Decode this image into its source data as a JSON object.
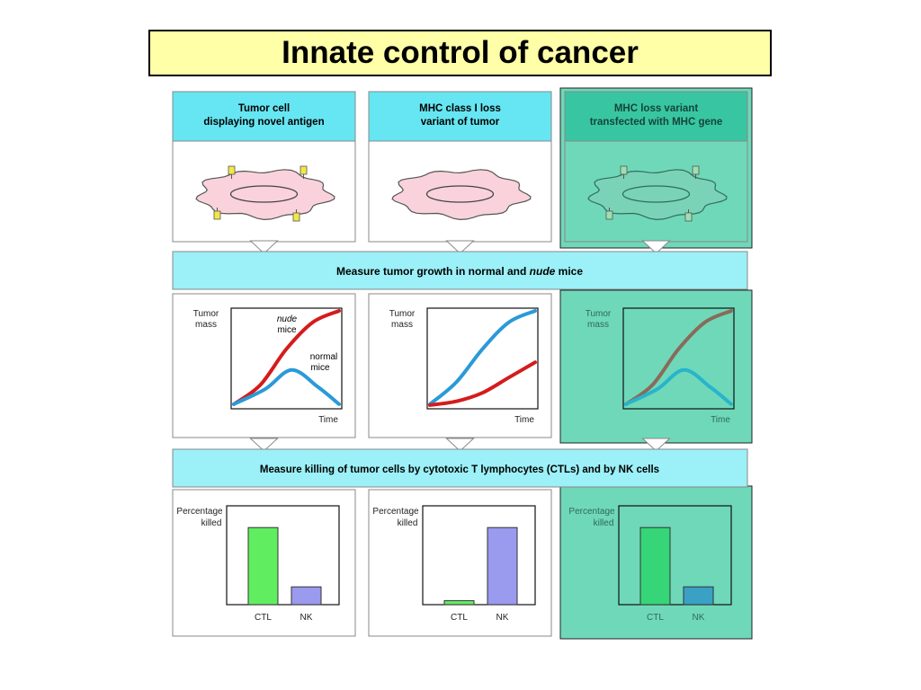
{
  "title": "Innate control of cancer",
  "colors": {
    "title_bg": "#ffffa8",
    "header_cyan": "#66e6f2",
    "band_cyan": "#9cf0f8",
    "cell_pink": "#fad2dc",
    "teal_panel": "#6fd8b8",
    "teal_header": "#38c6a2",
    "curve_red": "#d41c1c",
    "curve_blue": "#2a9ad8",
    "curve_brown": "#8a6a5c",
    "curve_teal_blue": "#28b4cc",
    "bar_green": "#60ee60",
    "bar_purple": "#9a9aee",
    "bar_teal_green": "#36d678",
    "bar_teal_blue": "#3aa0c4"
  },
  "columns": [
    {
      "header": [
        "Tumor cell",
        "displaying novel antigen"
      ],
      "style": "cyan",
      "antigens": true
    },
    {
      "header": [
        "MHC class I loss",
        "variant of tumor"
      ],
      "style": "cyan",
      "antigens": false
    },
    {
      "header": [
        "MHC loss variant",
        "transfected with MHC gene"
      ],
      "style": "teal",
      "antigens": true
    }
  ],
  "band1": {
    "pre": "Measure tumor growth in normal and ",
    "italic": "nude",
    "post": " mice"
  },
  "band2": {
    "text": "Measure killing of tumor cells by cytotoxic T lymphocytes (CTLs) and by NK cells"
  },
  "growth_axis": {
    "ylabel": [
      "Tumor",
      "mass"
    ],
    "xlabel": "Time"
  },
  "growth_annotations": {
    "nude": {
      "italic": "nude",
      "rest": "mice"
    },
    "normal": [
      "normal",
      "mice"
    ]
  },
  "kill_axis": {
    "ylabel": [
      "Percentage",
      "killed"
    ],
    "categories": [
      "CTL",
      "NK"
    ]
  },
  "chart_data": [
    {
      "type": "line",
      "xlabel": "Time",
      "ylabel": "Tumor mass",
      "series": [
        {
          "name": "nude mice",
          "color": "#d41c1c",
          "x": [
            0,
            0.25,
            0.5,
            0.75,
            1.0
          ],
          "y": [
            0.02,
            0.22,
            0.6,
            0.88,
            1.0
          ]
        },
        {
          "name": "normal mice",
          "color": "#2a9ad8",
          "x": [
            0,
            0.3,
            0.55,
            0.8,
            1.0
          ],
          "y": [
            0.02,
            0.18,
            0.38,
            0.2,
            0.02
          ]
        }
      ]
    },
    {
      "type": "line",
      "xlabel": "Time",
      "ylabel": "Tumor mass",
      "series": [
        {
          "color": "#2a9ad8",
          "x": [
            0,
            0.25,
            0.5,
            0.75,
            1.0
          ],
          "y": [
            0.02,
            0.25,
            0.6,
            0.88,
            1.0
          ]
        },
        {
          "color": "#d41c1c",
          "x": [
            0,
            0.25,
            0.5,
            0.75,
            1.0
          ],
          "y": [
            0.01,
            0.05,
            0.14,
            0.3,
            0.46
          ]
        }
      ]
    },
    {
      "type": "line",
      "xlabel": "Time",
      "ylabel": "Tumor mass",
      "series": [
        {
          "color": "#8a6a5c",
          "x": [
            0,
            0.25,
            0.5,
            0.75,
            1.0
          ],
          "y": [
            0.02,
            0.22,
            0.6,
            0.88,
            1.0
          ]
        },
        {
          "color": "#28b4cc",
          "x": [
            0,
            0.3,
            0.55,
            0.8,
            1.0
          ],
          "y": [
            0.02,
            0.18,
            0.38,
            0.2,
            0.02
          ]
        }
      ]
    },
    {
      "type": "bar",
      "ylabel": "Percentage killed",
      "categories": [
        "CTL",
        "NK"
      ],
      "values": [
        0.78,
        0.18
      ],
      "colors": [
        "#60ee60",
        "#9a9aee"
      ]
    },
    {
      "type": "bar",
      "ylabel": "Percentage killed",
      "categories": [
        "CTL",
        "NK"
      ],
      "values": [
        0.04,
        0.78
      ],
      "colors": [
        "#60ee60",
        "#9a9aee"
      ]
    },
    {
      "type": "bar",
      "ylabel": "Percentage killed",
      "categories": [
        "CTL",
        "NK"
      ],
      "values": [
        0.78,
        0.18
      ],
      "colors": [
        "#36d678",
        "#3aa0c4"
      ]
    }
  ]
}
